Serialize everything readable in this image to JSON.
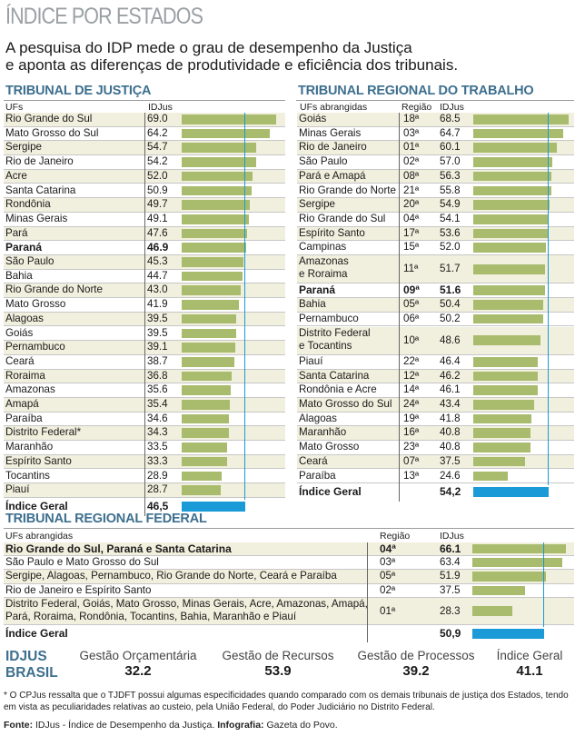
{
  "title": "ÍNDICE POR ESTADOS",
  "intro": {
    "line1": "A pesquisa do IDP mede o grau de desempenho da Justiça",
    "line2": "e aponta as diferenças de produtividade e eficiência dos tribunais."
  },
  "chart_data": [
    {
      "type": "bar",
      "title": "TRIBUNAL DE JUSTIÇA",
      "xlabel": "UFs",
      "ylabel": "IDJus",
      "xlim": [
        0,
        69
      ],
      "reference": {
        "label": "Índice Geral",
        "value": "46,5",
        "number": 46.5
      },
      "rows": [
        {
          "name": "Rio Grande do Sul",
          "value": "69.0",
          "number": 69.0
        },
        {
          "name": "Mato Grosso do Sul",
          "value": "64.2",
          "number": 64.2
        },
        {
          "name": "Sergipe",
          "value": "54.7",
          "number": 54.7
        },
        {
          "name": "Rio de Janeiro",
          "value": "54.2",
          "number": 54.2
        },
        {
          "name": "Acre",
          "value": "52.0",
          "number": 52.0
        },
        {
          "name": "Santa Catarina",
          "value": "50.9",
          "number": 50.9
        },
        {
          "name": "Rondônia",
          "value": "49.7",
          "number": 49.7
        },
        {
          "name": "Minas Gerais",
          "value": "49.1",
          "number": 49.1
        },
        {
          "name": "Pará",
          "value": "47.6",
          "number": 47.6
        },
        {
          "name": "Paraná",
          "value": "46.9",
          "number": 46.9,
          "bold": true
        },
        {
          "name": "São Paulo",
          "value": "45.3",
          "number": 45.3
        },
        {
          "name": "Bahia",
          "value": "44.7",
          "number": 44.7
        },
        {
          "name": "Rio Grande do Norte",
          "value": "43.0",
          "number": 43.0
        },
        {
          "name": "Mato Grosso",
          "value": "41.9",
          "number": 41.9
        },
        {
          "name": "Alagoas",
          "value": "39.5",
          "number": 39.5
        },
        {
          "name": "Goiás",
          "value": "39.5",
          "number": 39.5
        },
        {
          "name": "Pernambuco",
          "value": "39.1",
          "number": 39.1
        },
        {
          "name": "Ceará",
          "value": "38.7",
          "number": 38.7
        },
        {
          "name": "Roraima",
          "value": "36.8",
          "number": 36.8
        },
        {
          "name": "Amazonas",
          "value": "35.6",
          "number": 35.6
        },
        {
          "name": "Amapá",
          "value": "35.4",
          "number": 35.4
        },
        {
          "name": "Paraíba",
          "value": "34.6",
          "number": 34.6
        },
        {
          "name": "Distrito Federal*",
          "value": "34.3",
          "number": 34.3
        },
        {
          "name": "Maranhão",
          "value": "33.5",
          "number": 33.5
        },
        {
          "name": "Espírito Santo",
          "value": "33.3",
          "number": 33.3
        },
        {
          "name": "Tocantins",
          "value": "28.9",
          "number": 28.9
        },
        {
          "name": "Piauí",
          "value": "28.7",
          "number": 28.7
        }
      ]
    },
    {
      "type": "bar",
      "title": "TRIBUNAL REGIONAL DO TRABALHO",
      "xlabel": "UFs abrangidas",
      "region_label": "Região",
      "ylabel": "IDJus",
      "xlim": [
        0,
        68.5
      ],
      "reference": {
        "label": "Índice Geral",
        "value": "54,2",
        "number": 54.2
      },
      "rows": [
        {
          "name": "Goiás",
          "region": "18ª",
          "value": "68.5",
          "number": 68.5
        },
        {
          "name": "Minas Gerais",
          "region": "03ª",
          "value": "64.7",
          "number": 64.7
        },
        {
          "name": "Rio de Janeiro",
          "region": "01ª",
          "value": "60.1",
          "number": 60.1
        },
        {
          "name": "São Paulo",
          "region": "02ª",
          "value": "57.0",
          "number": 57.0
        },
        {
          "name": "Pará e Amapá",
          "region": "08ª",
          "value": "56.3",
          "number": 56.3
        },
        {
          "name": "Rio Grande do Norte",
          "region": "21ª",
          "value": "55.8",
          "number": 55.8
        },
        {
          "name": "Sergipe",
          "region": "20ª",
          "value": "54.9",
          "number": 54.9
        },
        {
          "name": "Rio Grande do Sul",
          "region": "04ª",
          "value": "54.1",
          "number": 54.1
        },
        {
          "name": "Espírito Santo",
          "region": "17ª",
          "value": "53.6",
          "number": 53.6
        },
        {
          "name": "Campinas",
          "region": "15ª",
          "value": "52.0",
          "number": 52.0
        },
        {
          "name": "Amazonas",
          "name2": "e Roraima",
          "region": "11ª",
          "value": "51.7",
          "number": 51.7
        },
        {
          "name": "Paraná",
          "region": "09ª",
          "value": "51.6",
          "number": 51.6,
          "bold": true
        },
        {
          "name": "Bahia",
          "region": "05ª",
          "value": "50.4",
          "number": 50.4
        },
        {
          "name": "Pernambuco",
          "region": "06ª",
          "value": "50.2",
          "number": 50.2
        },
        {
          "name": "Distrito Federal",
          "name2": "e Tocantins",
          "region": "10ª",
          "value": "48.6",
          "number": 48.6
        },
        {
          "name": "Piauí",
          "region": "22ª",
          "value": "46.4",
          "number": 46.4
        },
        {
          "name": "Santa Catarina",
          "region": "12ª",
          "value": "46.2",
          "number": 46.2
        },
        {
          "name": "Rondônia e Acre",
          "region": "14ª",
          "value": "46.1",
          "number": 46.1
        },
        {
          "name": "Mato Grosso do Sul",
          "region": "24ª",
          "value": "43.4",
          "number": 43.4
        },
        {
          "name": "Alagoas",
          "region": "19ª",
          "value": "41.8",
          "number": 41.8
        },
        {
          "name": "Maranhão",
          "region": "16ª",
          "value": "40.8",
          "number": 40.8
        },
        {
          "name": "Mato Grosso",
          "region": "23ª",
          "value": "40.8",
          "number": 40.8
        },
        {
          "name": "Ceará",
          "region": "07ª",
          "value": "37.5",
          "number": 37.5
        },
        {
          "name": "Paraíba",
          "region": "13ª",
          "value": "24.6",
          "number": 24.6
        }
      ]
    },
    {
      "type": "bar",
      "title": "TRIBUNAL REGIONAL FEDERAL",
      "xlabel": "UFs abrangidas",
      "region_label": "Região",
      "ylabel": "IDJus",
      "xlim": [
        0,
        66.1
      ],
      "reference": {
        "label": "Índice Geral",
        "value": "50,9",
        "number": 50.9
      },
      "rows": [
        {
          "name": "Rio Grande do Sul, Paraná e Santa Catarina",
          "region": "04ª",
          "value": "66.1",
          "number": 66.1,
          "bold": true
        },
        {
          "name": "São Paulo e Mato Grosso do Sul",
          "region": "03ª",
          "value": "63.4",
          "number": 63.4
        },
        {
          "name": "Sergipe, Alagoas, Pernambuco, Rio Grande do Norte, Ceará e Paraíba",
          "region": "05ª",
          "value": "51.9",
          "number": 51.9
        },
        {
          "name": "Rio de Janeiro e Espírito Santo",
          "region": "02ª",
          "value": "37.5",
          "number": 37.5
        },
        {
          "name": "Distrito Federal, Goiás, Mato Grosso, Minas Gerais, Acre, Amazonas, Amapá,",
          "name2": "Pará, Roraima, Rondônia, Tocantins, Bahia, Maranhão e Piauí",
          "region": "01ª",
          "value": "28.3",
          "number": 28.3
        }
      ]
    }
  ],
  "idjus": {
    "line1": "IDJUS",
    "line2": "BRASIL",
    "stats": [
      {
        "label": "Gestão Orçamentária",
        "value": "32.2"
      },
      {
        "label": "Gestão de Recursos",
        "value": "53.9"
      },
      {
        "label": "Gestão de Processos",
        "value": "39.2"
      },
      {
        "label": "Índice Geral",
        "value": "41.1"
      }
    ]
  },
  "note": "* O CPJus ressalta que o TJDFT possui algumas especificidades quando comparado com os demais tribunais de justiça dos Estados, tendo em vista as peculiaridades relativas ao custeio, pela União Federal, do Poder Judiciário no Distrito Federal.",
  "source": {
    "fonte_label": "Fonte:",
    "fonte": "IDJus - Índice de Desempenho da Justiça.",
    "info_label": "Infografia:",
    "info": "Gazeta do Povo."
  },
  "colors": {
    "header": "#3d6f8e",
    "bar": "#a9bb6c",
    "reference": "#1a9ad6",
    "shade": "#f1efdd"
  }
}
